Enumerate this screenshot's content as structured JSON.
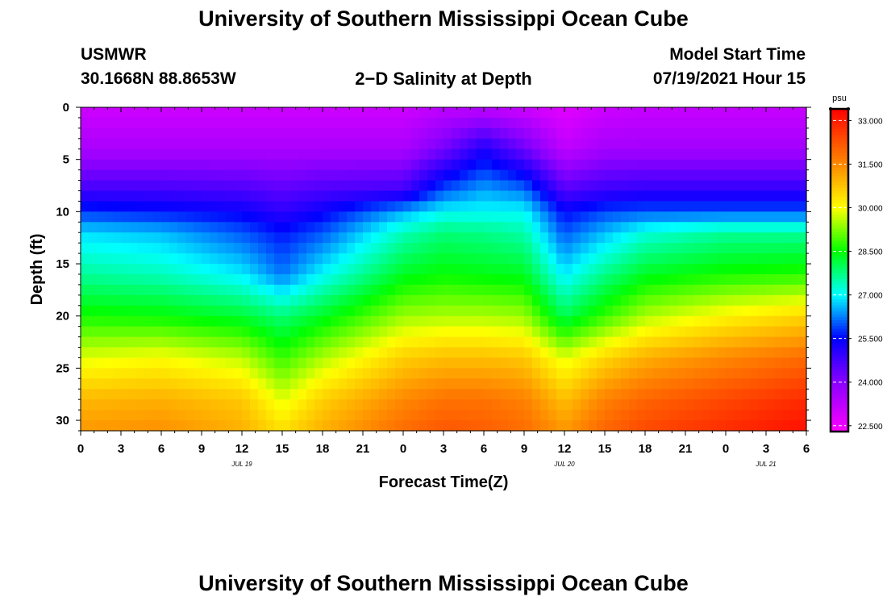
{
  "page": {
    "top_title": "University of Southern Mississippi Ocean Cube",
    "bottom_title": "University of Southern Mississippi Ocean Cube",
    "station": "USMWR",
    "location": "30.1668N  88.8653W",
    "plot_title": "2−D Salinity at Depth",
    "model_label": "Model Start Time",
    "model_time": "07/19/2021 Hour 15"
  },
  "chart_data": {
    "type": "heatmap",
    "title": "2-D Salinity at Depth",
    "xlabel": "Forecast Time(Z)",
    "ylabel": "Depth (ft)",
    "colorbar_unit": "psu",
    "x_tick_labels": [
      "0",
      "3",
      "6",
      "9",
      "12",
      "15",
      "18",
      "21",
      "0",
      "3",
      "6",
      "9",
      "12",
      "15",
      "18",
      "21",
      "0",
      "3",
      "6"
    ],
    "date_labels": [
      {
        "label": "JUL 19",
        "tick_index": 4
      },
      {
        "label": "JUL 20",
        "tick_index": 12
      },
      {
        "label": "JUL 21",
        "tick_index": 17
      }
    ],
    "x_range_hours": [
      0,
      54
    ],
    "y_range_ft": [
      0,
      31
    ],
    "y_ticks": [
      0,
      5,
      10,
      15,
      20,
      25,
      30
    ],
    "colorbar_range": [
      22.3,
      33.4
    ],
    "colorbar_ticks": [
      "33.000",
      "31.500",
      "30.000",
      "28.500",
      "27.000",
      "25.500",
      "24.000",
      "22.500"
    ],
    "colorbar_values": [
      33.0,
      31.5,
      30.0,
      28.5,
      27.0,
      25.5,
      24.0,
      22.5
    ],
    "color_stops": [
      {
        "v": 22.3,
        "c": "#ff00ff"
      },
      {
        "v": 24.0,
        "c": "#8800ff"
      },
      {
        "v": 25.5,
        "c": "#0000ff"
      },
      {
        "v": 27.0,
        "c": "#00ffff"
      },
      {
        "v": 28.5,
        "c": "#00ff00"
      },
      {
        "v": 30.0,
        "c": "#ffff00"
      },
      {
        "v": 31.5,
        "c": "#ff8800"
      },
      {
        "v": 33.4,
        "c": "#ff0000"
      }
    ],
    "field": {
      "x_hours": [
        0,
        6,
        12,
        15,
        18,
        24,
        27,
        30,
        33,
        36,
        39,
        42,
        48,
        54
      ],
      "depths_ft": [
        0,
        4,
        8,
        10,
        12,
        16,
        20,
        24,
        28,
        31
      ],
      "note": "estimated salinity (psu); rows = depths_ft, columns = x_hours",
      "values": [
        [
          23.0,
          23.0,
          23.0,
          23.0,
          23.0,
          23.0,
          23.2,
          23.2,
          23.0,
          22.7,
          23.0,
          23.1,
          23.1,
          23.1
        ],
        [
          23.5,
          23.5,
          23.5,
          23.5,
          23.5,
          23.5,
          24.2,
          25.2,
          24.3,
          23.2,
          23.6,
          23.6,
          23.6,
          23.6
        ],
        [
          24.8,
          24.8,
          24.7,
          24.5,
          24.7,
          24.8,
          26.0,
          26.5,
          26.2,
          24.6,
          24.9,
          25.0,
          25.0,
          25.0
        ],
        [
          25.8,
          25.6,
          25.4,
          25.0,
          25.4,
          26.5,
          27.0,
          27.0,
          27.0,
          25.5,
          25.9,
          26.0,
          26.0,
          26.0
        ],
        [
          26.8,
          26.6,
          26.0,
          25.6,
          26.0,
          27.4,
          27.8,
          27.7,
          27.5,
          26.0,
          26.6,
          27.2,
          27.6,
          27.6
        ],
        [
          27.6,
          27.4,
          26.9,
          26.2,
          27.0,
          28.3,
          28.5,
          28.4,
          28.3,
          26.9,
          27.7,
          28.3,
          28.6,
          28.7
        ],
        [
          28.6,
          28.5,
          28.2,
          27.8,
          28.3,
          29.4,
          29.5,
          29.5,
          29.4,
          28.0,
          28.8,
          29.5,
          30.1,
          30.5
        ],
        [
          29.8,
          30.0,
          29.6,
          28.8,
          29.5,
          30.6,
          30.8,
          30.8,
          30.7,
          29.8,
          30.5,
          31.0,
          31.5,
          31.9
        ],
        [
          30.9,
          31.0,
          30.7,
          29.8,
          30.6,
          31.5,
          31.8,
          31.8,
          31.6,
          30.8,
          31.6,
          32.0,
          32.4,
          32.8
        ],
        [
          31.3,
          31.4,
          31.0,
          30.4,
          31.0,
          31.9,
          32.2,
          32.1,
          31.9,
          31.3,
          32.0,
          32.4,
          32.8,
          33.2
        ]
      ]
    }
  }
}
